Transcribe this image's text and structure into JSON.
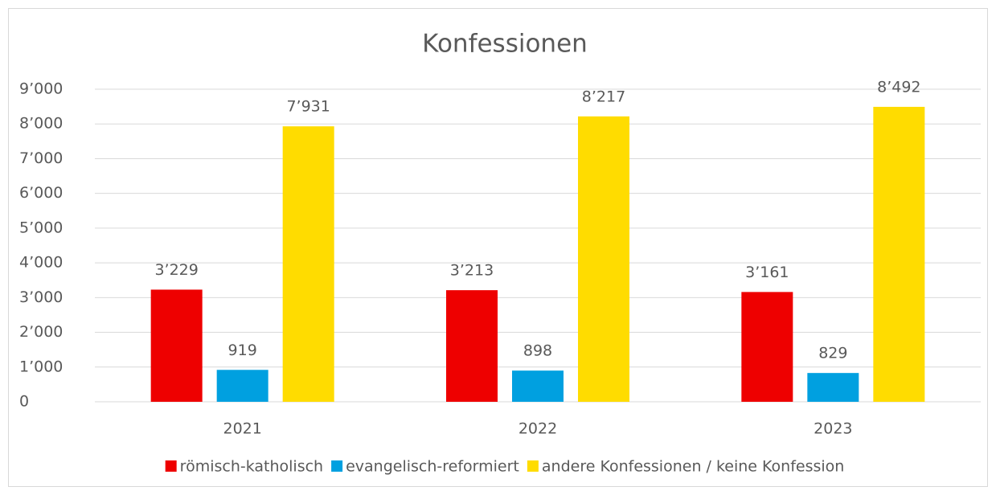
{
  "chart_data": {
    "type": "bar",
    "title": "Konfessionen",
    "categories": [
      "2021",
      "2022",
      "2023"
    ],
    "series": [
      {
        "name": "römisch-katholisch",
        "color": "#ee0000",
        "values": [
          3229,
          3213,
          3161
        ],
        "value_labels": [
          "3’229",
          "3’213",
          "3’161"
        ]
      },
      {
        "name": "evangelisch-reformiert",
        "color": "#00a0e0",
        "values": [
          919,
          898,
          829
        ],
        "value_labels": [
          "919",
          "898",
          "829"
        ]
      },
      {
        "name": "andere Konfessionen / keine Konfession",
        "color": "#ffdc00",
        "values": [
          7931,
          8217,
          8492
        ],
        "value_labels": [
          "7’931",
          "8’217",
          "8’492"
        ]
      }
    ],
    "ylim": [
      0,
      9000
    ],
    "yticks": [
      0,
      {
        "value": 1000,
        "label": "1’000"
      },
      {
        "value": 2000,
        "label": "2’000"
      },
      {
        "value": 3000,
        "label": "3’000"
      },
      {
        "value": 4000,
        "label": "4’000"
      },
      {
        "value": 5000,
        "label": "5’000"
      },
      {
        "value": 6000,
        "label": "6’000"
      },
      {
        "value": 7000,
        "label": "7’000"
      },
      {
        "value": 8000,
        "label": "8’000"
      },
      {
        "value": 9000,
        "label": "9’000"
      }
    ],
    "grid": true,
    "legend": "bottom"
  }
}
